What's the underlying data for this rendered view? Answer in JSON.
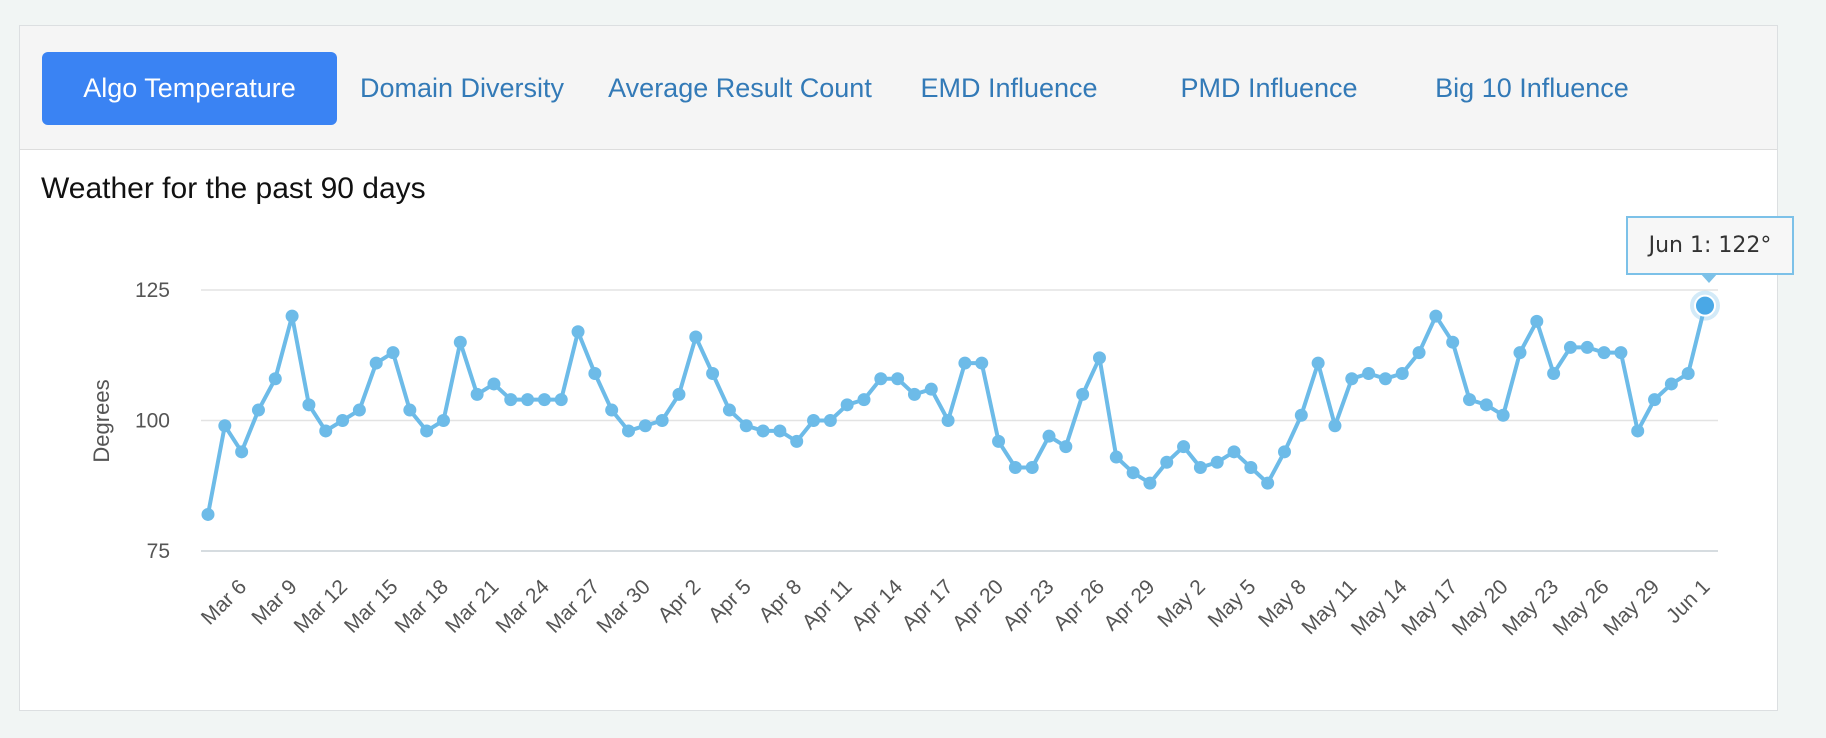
{
  "tabs": [
    {
      "label": "Algo Temperature",
      "active": true
    },
    {
      "label": "Domain Diversity",
      "active": false
    },
    {
      "label": "Average Result Count",
      "active": false
    },
    {
      "label": "EMD Influence",
      "active": false
    },
    {
      "label": "PMD Influence",
      "active": false
    },
    {
      "label": "Big 10 Influence",
      "active": false
    }
  ],
  "colors": {
    "accent": "#3a83f3",
    "link": "#337ab7",
    "series": "#6dbbe8",
    "grid": "#e3e3e3"
  },
  "tooltip": {
    "text": "Jun 1: 122°"
  },
  "chart_data": {
    "type": "line",
    "title": "Weather for the past 90 days",
    "xlabel": "",
    "ylabel": "Degrees",
    "ylim": [
      75,
      125
    ],
    "yticks": [
      75,
      100,
      125
    ],
    "grid": true,
    "tick_labels": [
      "Mar 6",
      "Mar 9",
      "Mar 12",
      "Mar 15",
      "Mar 18",
      "Mar 21",
      "Mar 24",
      "Mar 27",
      "Mar 30",
      "Apr 2",
      "Apr 5",
      "Apr 8",
      "Apr 11",
      "Apr 14",
      "Apr 17",
      "Apr 20",
      "Apr 23",
      "Apr 26",
      "Apr 29",
      "May 2",
      "May 5",
      "May 8",
      "May 11",
      "May 14",
      "May 17",
      "May 20",
      "May 23",
      "May 26",
      "May 29",
      "Jun 1"
    ],
    "tick_every": 3,
    "tick_offset": 2,
    "start_date": "Mar 4",
    "end_date": "Jun 1",
    "highlight_index": 89,
    "series": [
      {
        "name": "Algo Temperature",
        "values": [
          82,
          99,
          94,
          102,
          108,
          120,
          103,
          98,
          100,
          102,
          111,
          113,
          102,
          98,
          100,
          115,
          105,
          107,
          104,
          104,
          104,
          104,
          117,
          109,
          102,
          98,
          99,
          100,
          105,
          116,
          109,
          102,
          99,
          98,
          98,
          96,
          100,
          100,
          103,
          104,
          108,
          108,
          105,
          106,
          100,
          111,
          111,
          96,
          91,
          91,
          97,
          95,
          105,
          112,
          93,
          90,
          88,
          92,
          95,
          91,
          92,
          94,
          91,
          88,
          94,
          101,
          111,
          99,
          108,
          109,
          108,
          109,
          113,
          120,
          115,
          104,
          103,
          101,
          113,
          119,
          109,
          114,
          114,
          113,
          113,
          98,
          104,
          107,
          109,
          122
        ]
      }
    ]
  }
}
